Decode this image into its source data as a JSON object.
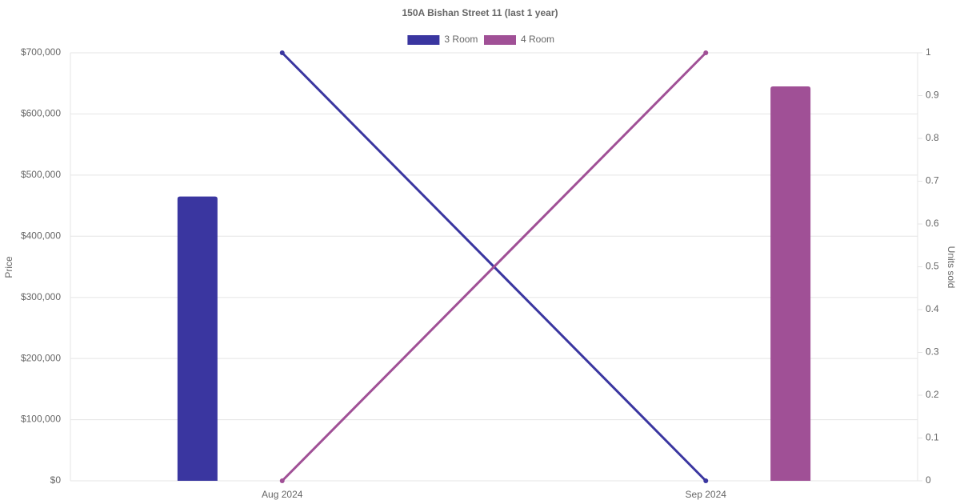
{
  "chart_data": {
    "type": "bar-line",
    "title": "150A Bishan Street 11 (last 1 year)",
    "categories": [
      "Aug 2024",
      "Sep 2024"
    ],
    "series": [
      {
        "name": "3 Room",
        "color": "#3a36a0",
        "values": [
          465000,
          null
        ],
        "units": [
          1,
          0
        ]
      },
      {
        "name": "4 Room",
        "color": "#a05096",
        "values": [
          null,
          645000
        ],
        "units": [
          0,
          1
        ]
      }
    ],
    "ylabel": "Price",
    "y2label": "Units sold",
    "ylim": [
      0,
      700000
    ],
    "yticks": [
      {
        "value": 0,
        "label": "$0"
      },
      {
        "value": 100000,
        "label": "$100,000"
      },
      {
        "value": 200000,
        "label": "$200,000"
      },
      {
        "value": 300000,
        "label": "$300,000"
      },
      {
        "value": 400000,
        "label": "$400,000"
      },
      {
        "value": 500000,
        "label": "$500,000"
      },
      {
        "value": 600000,
        "label": "$600,000"
      },
      {
        "value": 700000,
        "label": "$700,000"
      }
    ],
    "y2lim": [
      0,
      1
    ],
    "y2ticks": [
      0,
      0.1,
      0.2,
      0.3,
      0.4,
      0.5,
      0.6,
      0.7,
      0.8,
      0.9,
      1
    ],
    "grid": true,
    "legend": "top"
  }
}
